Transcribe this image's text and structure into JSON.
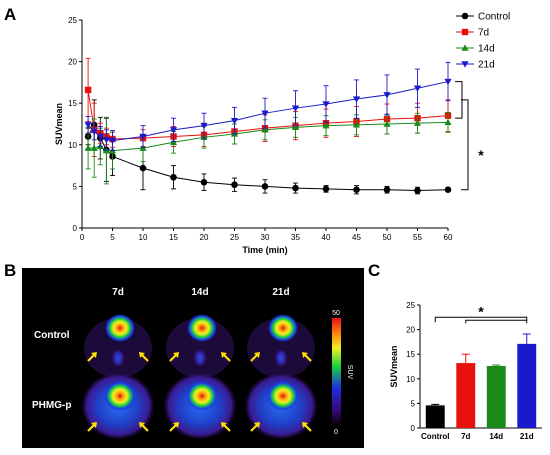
{
  "panels": {
    "a": "A",
    "b": "B",
    "c": "C"
  },
  "colors": {
    "Control": "#000000",
    "7d": "#e8120c",
    "14d": "#1a8a1a",
    "21d": "#1a1acc"
  },
  "chart_data": [
    {
      "type": "line",
      "panel": "A",
      "xlabel": "Time (min)",
      "ylabel": "SUVmean",
      "xlim": [
        0,
        60
      ],
      "ylim": [
        0,
        25
      ],
      "xticks": [
        "0",
        "5",
        "10",
        "15",
        "20",
        "25",
        "30",
        "35",
        "40",
        "45",
        "50",
        "55",
        "60"
      ],
      "yticks": [
        "0",
        "5",
        "10",
        "15",
        "20",
        "25"
      ],
      "legend_position": "top-right",
      "x": [
        1,
        2,
        3,
        4,
        5,
        10,
        15,
        20,
        25,
        30,
        35,
        40,
        45,
        50,
        55,
        60
      ],
      "series": [
        {
          "name": "Control",
          "marker": "circle",
          "values": [
            11.0,
            12.4,
            10.8,
            9.4,
            8.6,
            7.2,
            6.1,
            5.5,
            5.2,
            5.0,
            4.8,
            4.7,
            4.6,
            4.6,
            4.5,
            4.6
          ],
          "errors": [
            1.0,
            3.0,
            2.5,
            3.8,
            2.3,
            2.6,
            1.4,
            1.0,
            0.8,
            0.8,
            0.6,
            0.4,
            0.5,
            0.4,
            0.4,
            0.2
          ]
        },
        {
          "name": "7d",
          "marker": "square",
          "values": [
            16.6,
            11.8,
            11.4,
            11.0,
            10.7,
            10.8,
            11.0,
            11.2,
            11.6,
            12.0,
            12.3,
            12.6,
            12.8,
            13.1,
            13.2,
            13.5
          ],
          "errors": [
            3.8,
            3.2,
            1.2,
            1.0,
            1.0,
            1.0,
            1.2,
            1.4,
            1.5,
            1.6,
            1.7,
            1.7,
            1.8,
            1.8,
            1.8,
            1.9
          ]
        },
        {
          "name": "14d",
          "marker": "triangle-up",
          "values": [
            9.6,
            9.6,
            9.8,
            9.3,
            9.3,
            9.6,
            10.3,
            10.9,
            11.3,
            11.8,
            12.1,
            12.3,
            12.4,
            12.5,
            12.6,
            12.7
          ],
          "errors": [
            2.5,
            3.5,
            2.2,
            4.0,
            2.2,
            1.6,
            1.3,
            1.3,
            1.2,
            1.2,
            1.2,
            1.2,
            1.2,
            1.2,
            1.2,
            1.2
          ]
        },
        {
          "name": "21d",
          "marker": "triangle-down",
          "values": [
            12.4,
            11.6,
            11.0,
            10.6,
            10.5,
            11.0,
            11.8,
            12.3,
            12.9,
            13.8,
            14.4,
            14.9,
            15.5,
            16.0,
            16.8,
            17.6
          ],
          "errors": [
            1.0,
            1.0,
            1.2,
            1.2,
            1.2,
            1.3,
            1.4,
            1.5,
            1.6,
            1.8,
            2.1,
            2.2,
            2.3,
            2.4,
            2.3,
            2.3
          ]
        }
      ],
      "annotation": "*"
    },
    {
      "type": "bar",
      "panel": "C",
      "ylabel": "SUVmean",
      "ylim": [
        0,
        25
      ],
      "yticks": [
        "0",
        "5",
        "10",
        "15",
        "20",
        "25"
      ],
      "categories": [
        "Control",
        "7d",
        "14d",
        "21d"
      ],
      "values": [
        4.6,
        13.2,
        12.6,
        17.1
      ],
      "errors": [
        0.2,
        1.8,
        0.2,
        2.0
      ],
      "annotation": "*"
    }
  ],
  "pet_image": {
    "columns": [
      "7d",
      "14d",
      "21d"
    ],
    "rows": [
      "Control",
      "PHMG-p"
    ],
    "colorbar": {
      "max": "50",
      "min": "0",
      "label": "SUV"
    }
  }
}
